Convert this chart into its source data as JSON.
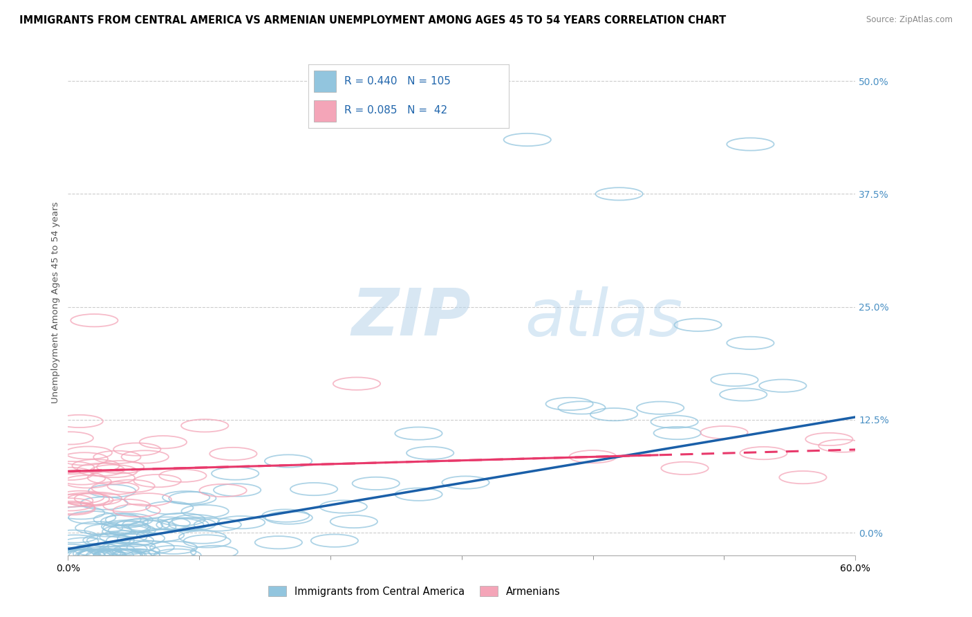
{
  "title": "IMMIGRANTS FROM CENTRAL AMERICA VS ARMENIAN UNEMPLOYMENT AMONG AGES 45 TO 54 YEARS CORRELATION CHART",
  "source": "Source: ZipAtlas.com",
  "ylabel": "Unemployment Among Ages 45 to 54 years",
  "xlim": [
    0.0,
    0.6
  ],
  "ylim": [
    -0.025,
    0.535
  ],
  "yticks": [
    0.0,
    0.125,
    0.25,
    0.375,
    0.5
  ],
  "ytick_labels": [
    "0.0%",
    "12.5%",
    "25.0%",
    "37.5%",
    "50.0%"
  ],
  "xtick_left_label": "0.0%",
  "xtick_right_label": "60.0%",
  "blue_R": "0.440",
  "blue_N": "105",
  "pink_R": "0.085",
  "pink_N": "42",
  "blue_color": "#92c5de",
  "pink_color": "#f4a5b8",
  "blue_line_color": "#1a5fa8",
  "pink_line_color": "#e8396b",
  "legend_label_blue": "Immigrants from Central America",
  "legend_label_pink": "Armenians",
  "title_fontsize": 10.5,
  "axis_label_fontsize": 9.5,
  "tick_fontsize": 10,
  "watermark_zip": "ZIP",
  "watermark_atlas": "atlas",
  "blue_trend_x0": 0.0,
  "blue_trend_y0": -0.018,
  "blue_trend_x1": 0.6,
  "blue_trend_y1": 0.128,
  "pink_trend_x0": 0.0,
  "pink_trend_y0": 0.068,
  "pink_trend_x1": 0.6,
  "pink_trend_y1": 0.092
}
